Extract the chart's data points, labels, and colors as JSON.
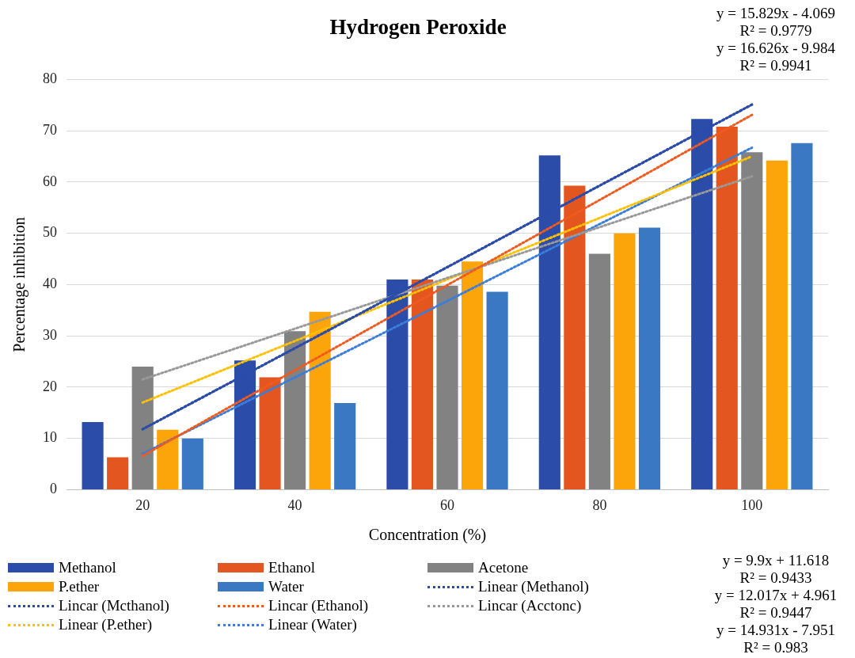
{
  "chart_data": {
    "type": "bar",
    "title": "Hydrogen Peroxide",
    "xlabel": "Concentration (%)",
    "ylabel": "Percentage inhibition",
    "categories": [
      "20",
      "40",
      "60",
      "80",
      "100"
    ],
    "ylim": [
      0,
      80
    ],
    "yticks": [
      0,
      10,
      20,
      30,
      40,
      50,
      60,
      70,
      80
    ],
    "grid": "y",
    "legend": "bottom",
    "series": [
      {
        "name": "Methanol",
        "color": "#2b4ca9",
        "values": [
          13.2,
          25.2,
          41,
          65.2,
          72.3
        ]
      },
      {
        "name": "Ethanol",
        "color": "#e4561f",
        "values": [
          6.3,
          21.9,
          41,
          59.3,
          70.8
        ]
      },
      {
        "name": "Acetone",
        "color": "#828282",
        "values": [
          24,
          30.9,
          39.8,
          46,
          65.8
        ]
      },
      {
        "name": "P.ether",
        "color": "#fca50a",
        "values": [
          11.7,
          34.7,
          44.5,
          50,
          64.2
        ]
      },
      {
        "name": "Water",
        "color": "#3a78c4",
        "values": [
          10,
          16.9,
          38.6,
          51.1,
          67.6
        ]
      },
      {
        "name": "Linear (Methanol)",
        "type": "line",
        "line_style": "dotted",
        "marker": "none",
        "color": "#2b4ca9",
        "values": [
          11.8,
          27.6,
          43.4,
          59.3,
          75.1
        ]
      },
      {
        "name": "Lincar (Mcthanol)",
        "type": "line",
        "line_style": "dotted",
        "marker": "none",
        "color": "#2b4ca9",
        "values": [
          11.8,
          27.6,
          43.4,
          59.3,
          75.1
        ]
      },
      {
        "name": "Lincar (Ethanol)",
        "type": "line",
        "line_style": "dotted",
        "marker": "none",
        "color": "#f05a1e",
        "values": [
          6.6,
          23.3,
          39.9,
          56.5,
          73.1
        ]
      },
      {
        "name": "Lincar (Acctonc)",
        "type": "line",
        "line_style": "dotted",
        "marker": "none",
        "color": "#999999",
        "values": [
          21.5,
          31.4,
          41.3,
          51.2,
          61.1
        ]
      },
      {
        "name": "Linear (P.ether)",
        "type": "line",
        "line_style": "dotted",
        "marker": "none",
        "color": "#ffc000",
        "values": [
          17,
          29,
          41,
          53,
          65
        ]
      },
      {
        "name": "Linear (Water)",
        "type": "line",
        "line_style": "dotted",
        "marker": "none",
        "color": "#3b7dd8",
        "values": [
          7,
          21.9,
          36.8,
          51.8,
          66.7
        ]
      }
    ],
    "annotations": [
      "y = 15.829x - 4.069",
      "R² = 0.9779",
      "y = 16.626x - 9.984",
      "R² = 0.9941",
      "y = 9.9x + 11.618",
      "R² = 0.9433",
      "y = 12.017x + 4.961",
      "R² = 0.9447",
      "y = 14.931x - 7.951",
      "R² = 0.983"
    ]
  }
}
